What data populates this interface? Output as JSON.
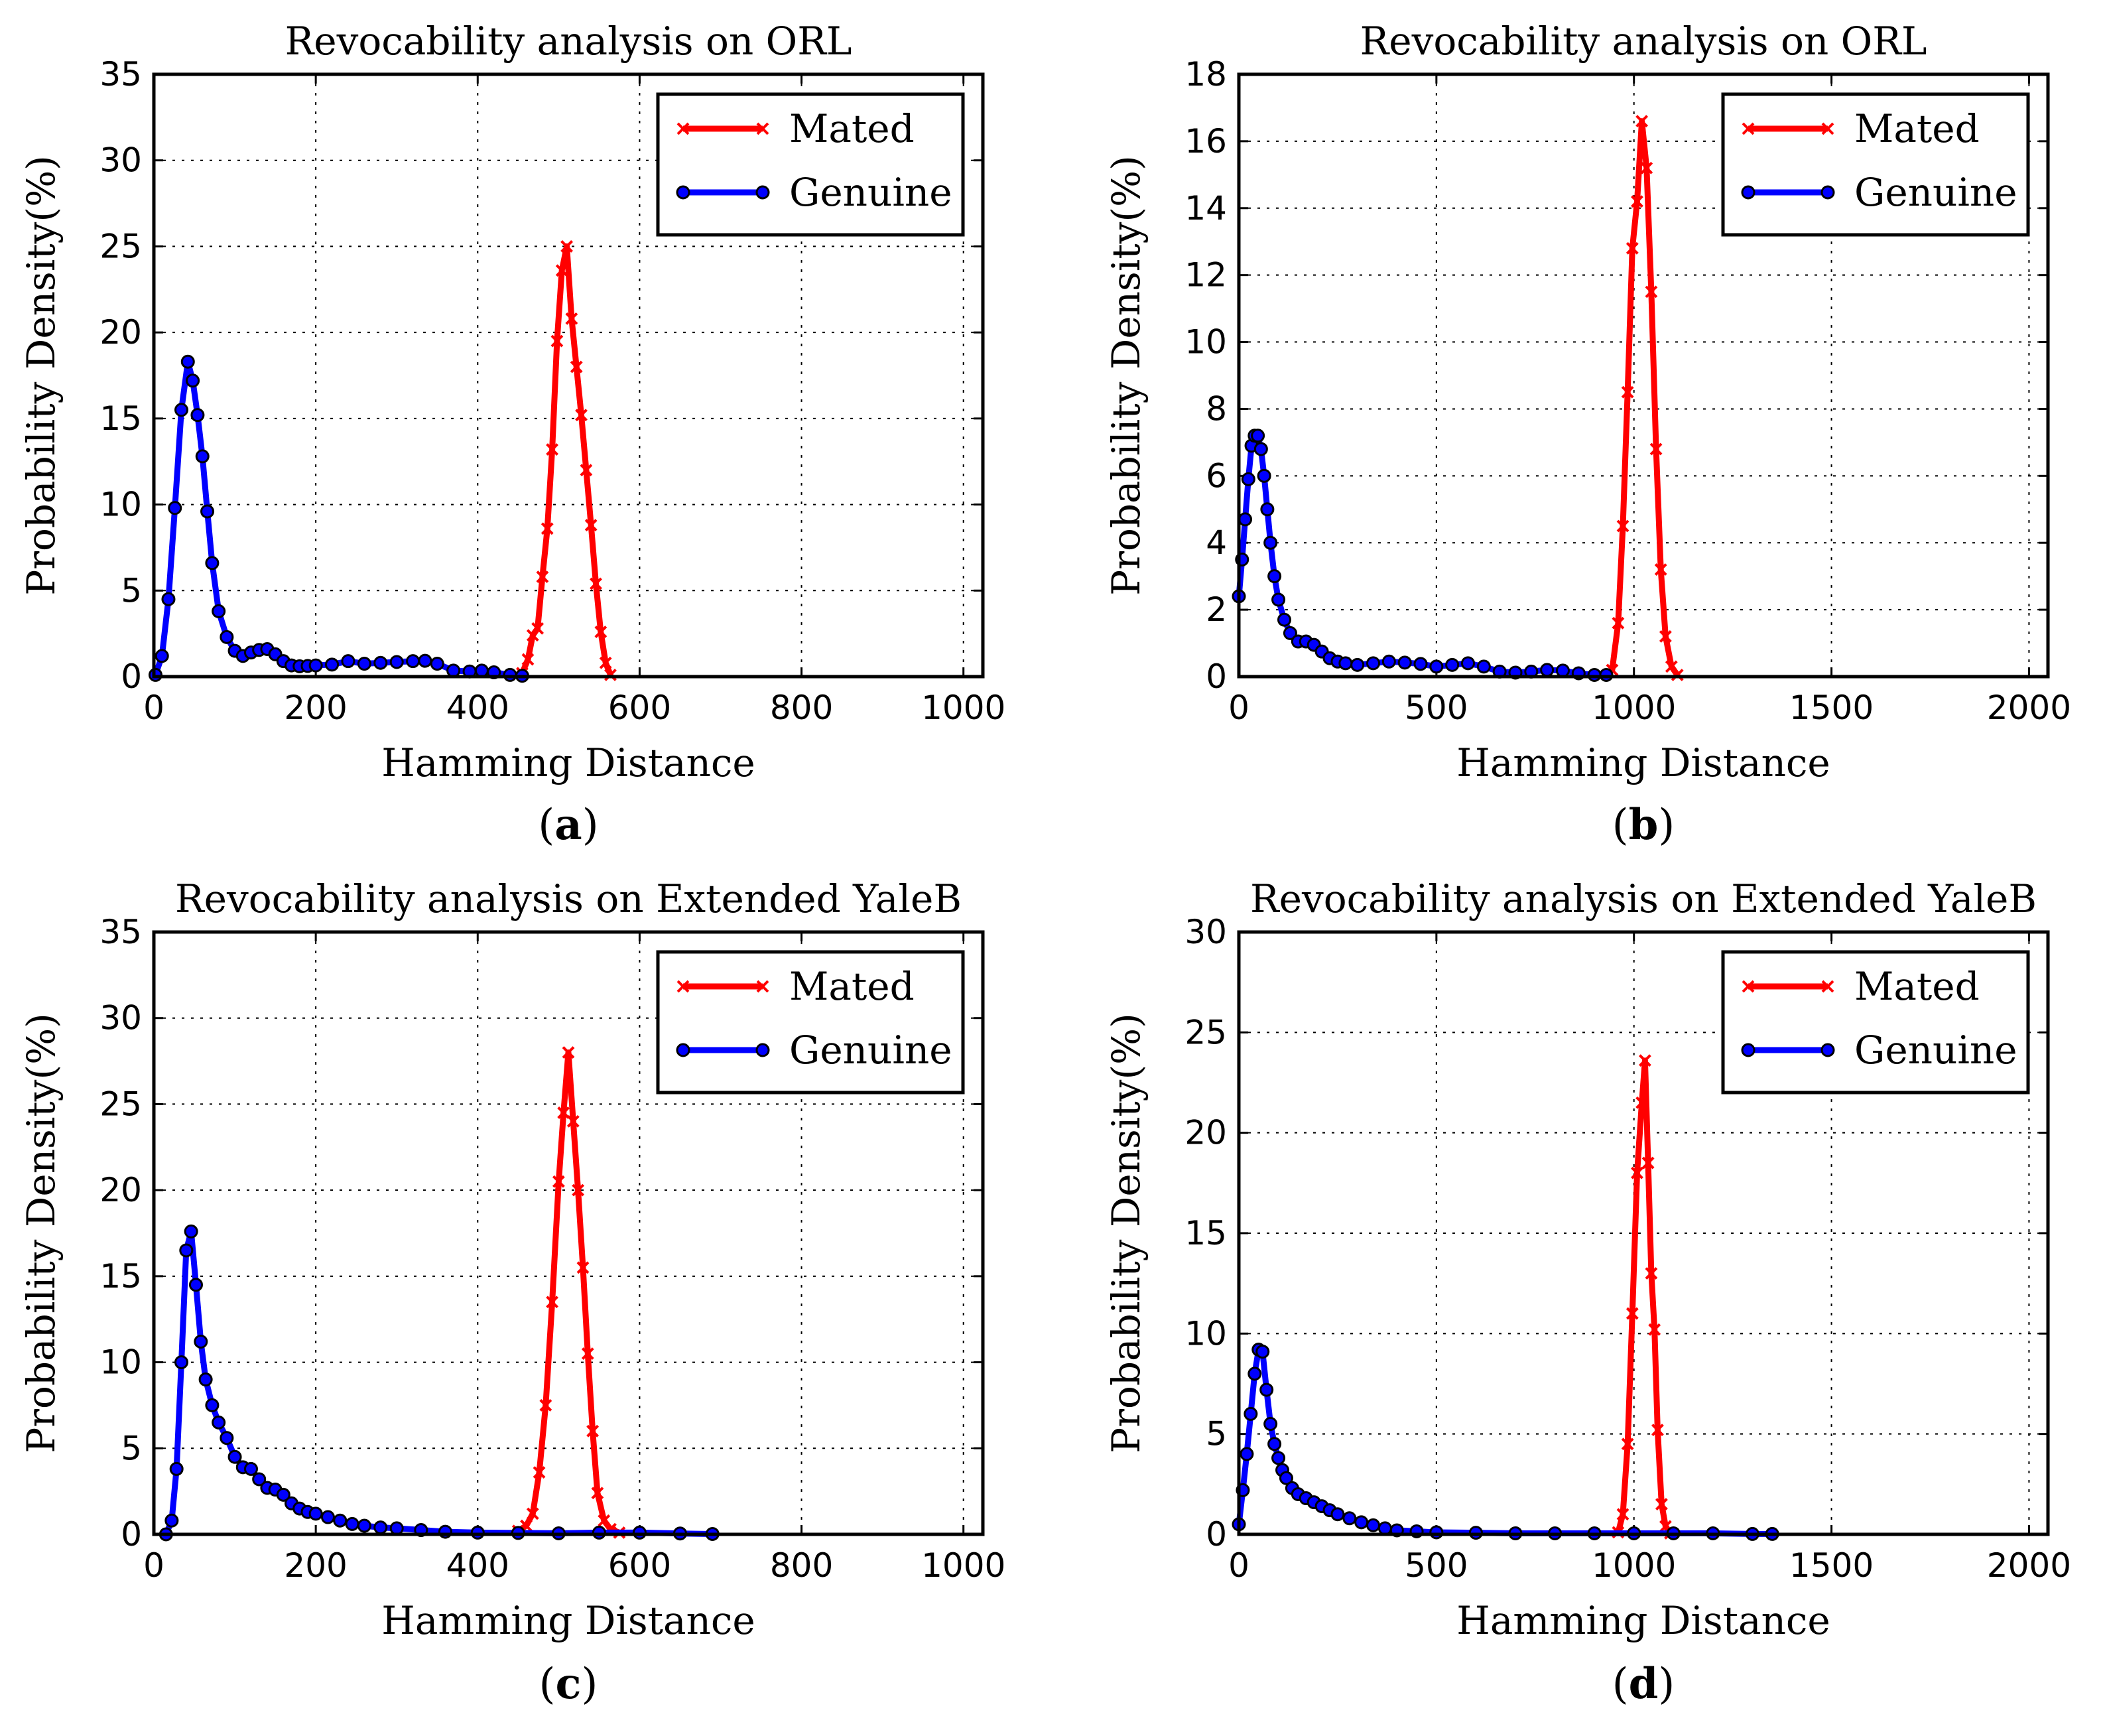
{
  "chart_data": [
    {
      "type": "line",
      "panel_label": "a",
      "title": "Revocability analysis on ORL",
      "xlabel": "Hamming Distance",
      "ylabel": "Probability Density(%)",
      "xlim": [
        0,
        1024
      ],
      "ylim": [
        0,
        35
      ],
      "xticks": [
        0,
        200,
        400,
        600,
        800,
        1000
      ],
      "yticks": [
        0,
        5,
        10,
        15,
        20,
        25,
        30,
        35
      ],
      "grid": true,
      "legend_position": "top-right",
      "series": [
        {
          "name": "Mated",
          "color": "#ff0000",
          "marker": "x",
          "x": [
            455,
            462,
            468,
            474,
            480,
            486,
            492,
            498,
            504,
            510,
            516,
            522,
            528,
            534,
            540,
            546,
            552,
            558,
            564
          ],
          "y": [
            0.2,
            1.0,
            2.4,
            2.8,
            5.8,
            8.6,
            13.2,
            19.5,
            23.6,
            25.0,
            20.8,
            18.0,
            15.2,
            12.0,
            8.8,
            5.4,
            2.6,
            0.8,
            0.1
          ]
        },
        {
          "name": "Genuine",
          "color": "#0000ff",
          "marker": "o",
          "x": [
            2,
            10,
            18,
            26,
            34,
            42,
            48,
            54,
            60,
            66,
            72,
            80,
            90,
            100,
            110,
            120,
            130,
            140,
            150,
            160,
            170,
            180,
            190,
            200,
            220,
            240,
            260,
            280,
            300,
            320,
            335,
            350,
            370,
            390,
            405,
            420,
            440,
            455
          ],
          "y": [
            0.1,
            1.2,
            4.5,
            9.8,
            15.5,
            18.3,
            17.2,
            15.2,
            12.8,
            9.6,
            6.6,
            3.8,
            2.3,
            1.5,
            1.2,
            1.4,
            1.55,
            1.6,
            1.3,
            0.9,
            0.65,
            0.6,
            0.62,
            0.65,
            0.7,
            0.9,
            0.75,
            0.8,
            0.85,
            0.9,
            0.92,
            0.75,
            0.35,
            0.3,
            0.35,
            0.25,
            0.1,
            0.05
          ]
        }
      ]
    },
    {
      "type": "line",
      "panel_label": "b",
      "title": "Revocability analysis on ORL",
      "xlabel": "Hamming Distance",
      "ylabel": "Probability Density(%)",
      "xlim": [
        0,
        2048
      ],
      "ylim": [
        0,
        18
      ],
      "xticks": [
        0,
        500,
        1000,
        1500,
        2000
      ],
      "yticks": [
        0,
        2,
        4,
        6,
        8,
        10,
        12,
        14,
        16,
        18
      ],
      "grid": true,
      "legend_position": "top-right",
      "series": [
        {
          "name": "Mated",
          "color": "#ff0000",
          "marker": "x",
          "x": [
            945,
            960,
            972,
            984,
            996,
            1008,
            1020,
            1032,
            1044,
            1056,
            1068,
            1080,
            1095,
            1110
          ],
          "y": [
            0.2,
            1.6,
            4.5,
            8.5,
            12.8,
            14.2,
            16.6,
            15.2,
            11.5,
            6.8,
            3.2,
            1.2,
            0.3,
            0.05
          ]
        },
        {
          "name": "Genuine",
          "color": "#0000ff",
          "marker": "o",
          "x": [
            0,
            8,
            16,
            24,
            32,
            40,
            48,
            56,
            64,
            72,
            80,
            90,
            100,
            115,
            130,
            150,
            170,
            190,
            210,
            230,
            250,
            270,
            300,
            340,
            380,
            420,
            460,
            500,
            540,
            580,
            620,
            660,
            700,
            740,
            780,
            820,
            860,
            900,
            930
          ],
          "y": [
            2.4,
            3.5,
            4.7,
            5.9,
            6.9,
            7.2,
            7.2,
            6.8,
            6.0,
            5.0,
            4.0,
            3.0,
            2.3,
            1.7,
            1.3,
            1.05,
            1.05,
            0.95,
            0.75,
            0.55,
            0.45,
            0.4,
            0.35,
            0.4,
            0.45,
            0.42,
            0.38,
            0.3,
            0.35,
            0.4,
            0.3,
            0.15,
            0.12,
            0.15,
            0.2,
            0.18,
            0.1,
            0.05,
            0.05
          ]
        }
      ]
    },
    {
      "type": "line",
      "panel_label": "c",
      "title": "Revocability analysis on Extended YaleB",
      "xlabel": "Hamming Distance",
      "ylabel": "Probability Density(%)",
      "xlim": [
        0,
        1024
      ],
      "ylim": [
        0,
        35
      ],
      "xticks": [
        0,
        200,
        400,
        600,
        800,
        1000
      ],
      "yticks": [
        0,
        5,
        10,
        15,
        20,
        25,
        30,
        35
      ],
      "grid": true,
      "legend_position": "top-right",
      "series": [
        {
          "name": "Mated",
          "color": "#ff0000",
          "marker": "x",
          "x": [
            450,
            460,
            468,
            476,
            484,
            492,
            500,
            506,
            512,
            518,
            524,
            530,
            536,
            542,
            548,
            556,
            564,
            575
          ],
          "y": [
            0.2,
            0.5,
            1.2,
            3.6,
            7.5,
            13.5,
            20.5,
            24.5,
            28.0,
            24.0,
            20.0,
            15.5,
            10.5,
            6.0,
            2.4,
            0.8,
            0.3,
            0.1
          ]
        },
        {
          "name": "Genuine",
          "color": "#0000ff",
          "marker": "o",
          "x": [
            15,
            22,
            28,
            34,
            40,
            46,
            52,
            58,
            64,
            72,
            80,
            90,
            100,
            110,
            120,
            130,
            140,
            150,
            160,
            170,
            180,
            190,
            200,
            215,
            230,
            245,
            260,
            280,
            300,
            330,
            360,
            400,
            450,
            500,
            550,
            600,
            650,
            690
          ],
          "y": [
            0.0,
            0.8,
            3.8,
            10.0,
            16.5,
            17.6,
            14.5,
            11.2,
            9.0,
            7.5,
            6.5,
            5.6,
            4.5,
            3.9,
            3.8,
            3.2,
            2.7,
            2.6,
            2.3,
            1.8,
            1.5,
            1.3,
            1.2,
            1.0,
            0.8,
            0.6,
            0.5,
            0.4,
            0.35,
            0.25,
            0.15,
            0.1,
            0.08,
            0.06,
            0.1,
            0.1,
            0.05,
            0.02
          ]
        }
      ]
    },
    {
      "type": "line",
      "panel_label": "d",
      "title": "Revocability analysis on Extended YaleB",
      "xlabel": "Hamming Distance",
      "ylabel": "Probability Density(%)",
      "xlim": [
        0,
        2048
      ],
      "ylim": [
        0,
        30
      ],
      "xticks": [
        0,
        500,
        1000,
        1500,
        2000
      ],
      "yticks": [
        0,
        5,
        10,
        15,
        20,
        25,
        30
      ],
      "grid": true,
      "legend_position": "top-right",
      "series": [
        {
          "name": "Mated",
          "color": "#ff0000",
          "marker": "x",
          "x": [
            960,
            972,
            984,
            996,
            1008,
            1020,
            1028,
            1036,
            1044,
            1052,
            1060,
            1070,
            1080,
            1092
          ],
          "y": [
            0.1,
            1.0,
            4.5,
            11.0,
            18.0,
            21.5,
            23.6,
            18.5,
            13.0,
            10.2,
            5.2,
            1.5,
            0.4,
            0.05
          ]
        },
        {
          "name": "Genuine",
          "color": "#0000ff",
          "marker": "o",
          "x": [
            0,
            10,
            20,
            30,
            40,
            50,
            60,
            70,
            80,
            90,
            100,
            110,
            120,
            135,
            150,
            170,
            190,
            210,
            230,
            250,
            280,
            310,
            340,
            370,
            400,
            450,
            500,
            600,
            700,
            800,
            900,
            1000,
            1100,
            1200,
            1300,
            1350
          ],
          "y": [
            0.5,
            2.2,
            4.0,
            6.0,
            8.0,
            9.2,
            9.1,
            7.2,
            5.5,
            4.5,
            3.8,
            3.2,
            2.8,
            2.3,
            2.0,
            1.8,
            1.6,
            1.4,
            1.2,
            1.0,
            0.8,
            0.6,
            0.45,
            0.3,
            0.2,
            0.15,
            0.1,
            0.08,
            0.05,
            0.05,
            0.05,
            0.05,
            0.05,
            0.05,
            0.02,
            0.02
          ]
        }
      ]
    }
  ]
}
